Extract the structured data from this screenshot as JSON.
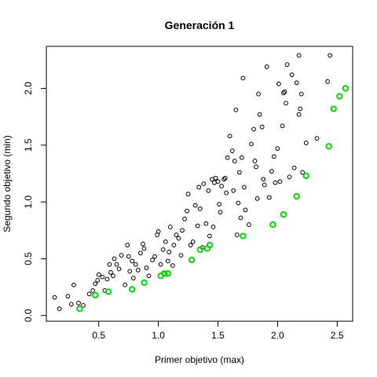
{
  "chart_data": {
    "type": "scatter",
    "title": "Generación 1",
    "xlabel": "Primer objetivo (max)",
    "ylabel": "Segundo objetivo (min)",
    "xlim": [
      0.06,
      2.63
    ],
    "ylim": [
      -0.05,
      2.37
    ],
    "xticks": [
      "0.5",
      "1.0",
      "1.5",
      "2.0",
      "2.5"
    ],
    "xtick_values": [
      0.5,
      1.0,
      1.5,
      2.0,
      2.5
    ],
    "yticks": [
      "0.0",
      "0.5",
      "1.0",
      "1.5",
      "2.0"
    ],
    "ytick_values": [
      0.0,
      0.5,
      1.0,
      1.5,
      2.0
    ],
    "grid": false,
    "legend": "none",
    "series": [
      {
        "color": "#000000",
        "marker": "open-circle",
        "points": [
          [
            0.13,
            0.16
          ],
          [
            0.17,
            0.06
          ],
          [
            0.24,
            0.17
          ],
          [
            0.27,
            0.1
          ],
          [
            0.29,
            0.27
          ],
          [
            0.33,
            0.11
          ],
          [
            0.37,
            0.09
          ],
          [
            0.42,
            0.19
          ],
          [
            0.45,
            0.22
          ],
          [
            0.47,
            0.28
          ],
          [
            0.49,
            0.31
          ],
          [
            0.5,
            0.36
          ],
          [
            0.53,
            0.34
          ],
          [
            0.55,
            0.22
          ],
          [
            0.57,
            0.32
          ],
          [
            0.59,
            0.45
          ],
          [
            0.6,
            0.38
          ],
          [
            0.62,
            0.35
          ],
          [
            0.63,
            0.5
          ],
          [
            0.65,
            0.45
          ],
          [
            0.67,
            0.41
          ],
          [
            0.69,
            0.53
          ],
          [
            0.72,
            0.27
          ],
          [
            0.74,
            0.62
          ],
          [
            0.75,
            0.52
          ],
          [
            0.76,
            0.39
          ],
          [
            0.78,
            0.48
          ],
          [
            0.79,
            0.33
          ],
          [
            0.81,
            0.45
          ],
          [
            0.83,
            0.4
          ],
          [
            0.85,
            0.55
          ],
          [
            0.87,
            0.63
          ],
          [
            0.88,
            0.59
          ],
          [
            0.9,
            0.42
          ],
          [
            0.92,
            0.35
          ],
          [
            0.95,
            0.49
          ],
          [
            0.97,
            0.52
          ],
          [
            0.99,
            0.71
          ],
          [
            1.0,
            0.74
          ],
          [
            1.02,
            0.45
          ],
          [
            1.04,
            0.58
          ],
          [
            1.05,
            0.37
          ],
          [
            1.06,
            0.65
          ],
          [
            1.08,
            0.48
          ],
          [
            1.09,
            0.56
          ],
          [
            1.1,
            0.78
          ],
          [
            1.12,
            0.44
          ],
          [
            1.13,
            0.62
          ],
          [
            1.15,
            0.71
          ],
          [
            1.17,
            0.68
          ],
          [
            1.19,
            0.53
          ],
          [
            1.2,
            0.75
          ],
          [
            1.22,
            0.85
          ],
          [
            1.24,
            0.92
          ],
          [
            1.25,
            1.07
          ],
          [
            1.27,
            0.62
          ],
          [
            1.29,
            0.65
          ],
          [
            1.31,
            0.97
          ],
          [
            1.33,
            0.79
          ],
          [
            1.34,
            1.13
          ],
          [
            1.35,
            0.94
          ],
          [
            1.37,
            0.6
          ],
          [
            1.38,
            1.16
          ],
          [
            1.4,
            0.81
          ],
          [
            1.42,
            1.1
          ],
          [
            1.43,
            0.7
          ],
          [
            1.45,
            1.2
          ],
          [
            1.46,
            0.78
          ],
          [
            1.47,
            1.17
          ],
          [
            1.48,
            1.21
          ],
          [
            1.5,
            1.18
          ],
          [
            1.51,
            0.98
          ],
          [
            1.52,
            0.91
          ],
          [
            1.53,
            1.14
          ],
          [
            1.55,
            1.2
          ],
          [
            1.56,
            1.21
          ],
          [
            1.57,
            1.08
          ],
          [
            1.58,
            1.39
          ],
          [
            1.6,
            1.58
          ],
          [
            1.62,
            1.45
          ],
          [
            1.63,
            1.1
          ],
          [
            1.64,
            1.36
          ],
          [
            1.65,
            1.81
          ],
          [
            1.66,
            0.71
          ],
          [
            1.67,
            0.99
          ],
          [
            1.68,
            1.26
          ],
          [
            1.69,
            0.86
          ],
          [
            1.7,
            1.39
          ],
          [
            1.71,
            2.09
          ],
          [
            1.72,
            1.13
          ],
          [
            1.73,
            0.93
          ],
          [
            1.76,
            0.8
          ],
          [
            1.78,
            1.51
          ],
          [
            1.8,
            1.64
          ],
          [
            1.81,
            1.36
          ],
          [
            1.82,
            1.31
          ],
          [
            1.83,
            1.03
          ],
          [
            1.84,
            1.95
          ],
          [
            1.85,
            1.77
          ],
          [
            1.87,
            1.66
          ],
          [
            1.88,
            1.2
          ],
          [
            1.89,
            1.15
          ],
          [
            1.91,
            2.19
          ],
          [
            1.93,
            1.04
          ],
          [
            1.95,
            1.27
          ],
          [
            1.97,
            1.4
          ],
          [
            1.98,
            1.17
          ],
          [
            2.0,
            1.47
          ],
          [
            2.01,
            2.04
          ],
          [
            2.02,
            1.18
          ],
          [
            2.04,
            1.67
          ],
          [
            2.05,
            1.96
          ],
          [
            2.06,
            1.97
          ],
          [
            2.07,
            1.87
          ],
          [
            2.08,
            2.21
          ],
          [
            2.1,
            1.22
          ],
          [
            2.12,
            2.12
          ],
          [
            2.14,
            1.3
          ],
          [
            2.16,
            2.05
          ],
          [
            2.18,
            1.77
          ],
          [
            2.19,
            1.82
          ],
          [
            2.2,
            1.95
          ],
          [
            2.21,
            1.26
          ],
          [
            2.24,
            1.52
          ],
          [
            2.33,
            1.56
          ],
          [
            2.42,
            2.06
          ],
          [
            2.44,
            2.29
          ],
          [
            2.18,
            2.29
          ]
        ]
      },
      {
        "color": "#00dd00",
        "marker": "thick-open-circle",
        "points": [
          [
            0.34,
            0.06
          ],
          [
            0.47,
            0.18
          ],
          [
            0.58,
            0.21
          ],
          [
            0.78,
            0.23
          ],
          [
            0.88,
            0.29
          ],
          [
            1.02,
            0.35
          ],
          [
            1.05,
            0.37
          ],
          [
            1.08,
            0.37
          ],
          [
            1.28,
            0.49
          ],
          [
            1.35,
            0.58
          ],
          [
            1.41,
            0.59
          ],
          [
            1.43,
            0.62
          ],
          [
            1.71,
            0.7
          ],
          [
            1.96,
            0.8
          ],
          [
            2.05,
            0.89
          ],
          [
            2.16,
            1.05
          ],
          [
            2.24,
            1.23
          ],
          [
            2.43,
            1.49
          ],
          [
            2.47,
            1.82
          ],
          [
            2.52,
            1.93
          ],
          [
            2.57,
            2.0
          ]
        ]
      }
    ]
  }
}
